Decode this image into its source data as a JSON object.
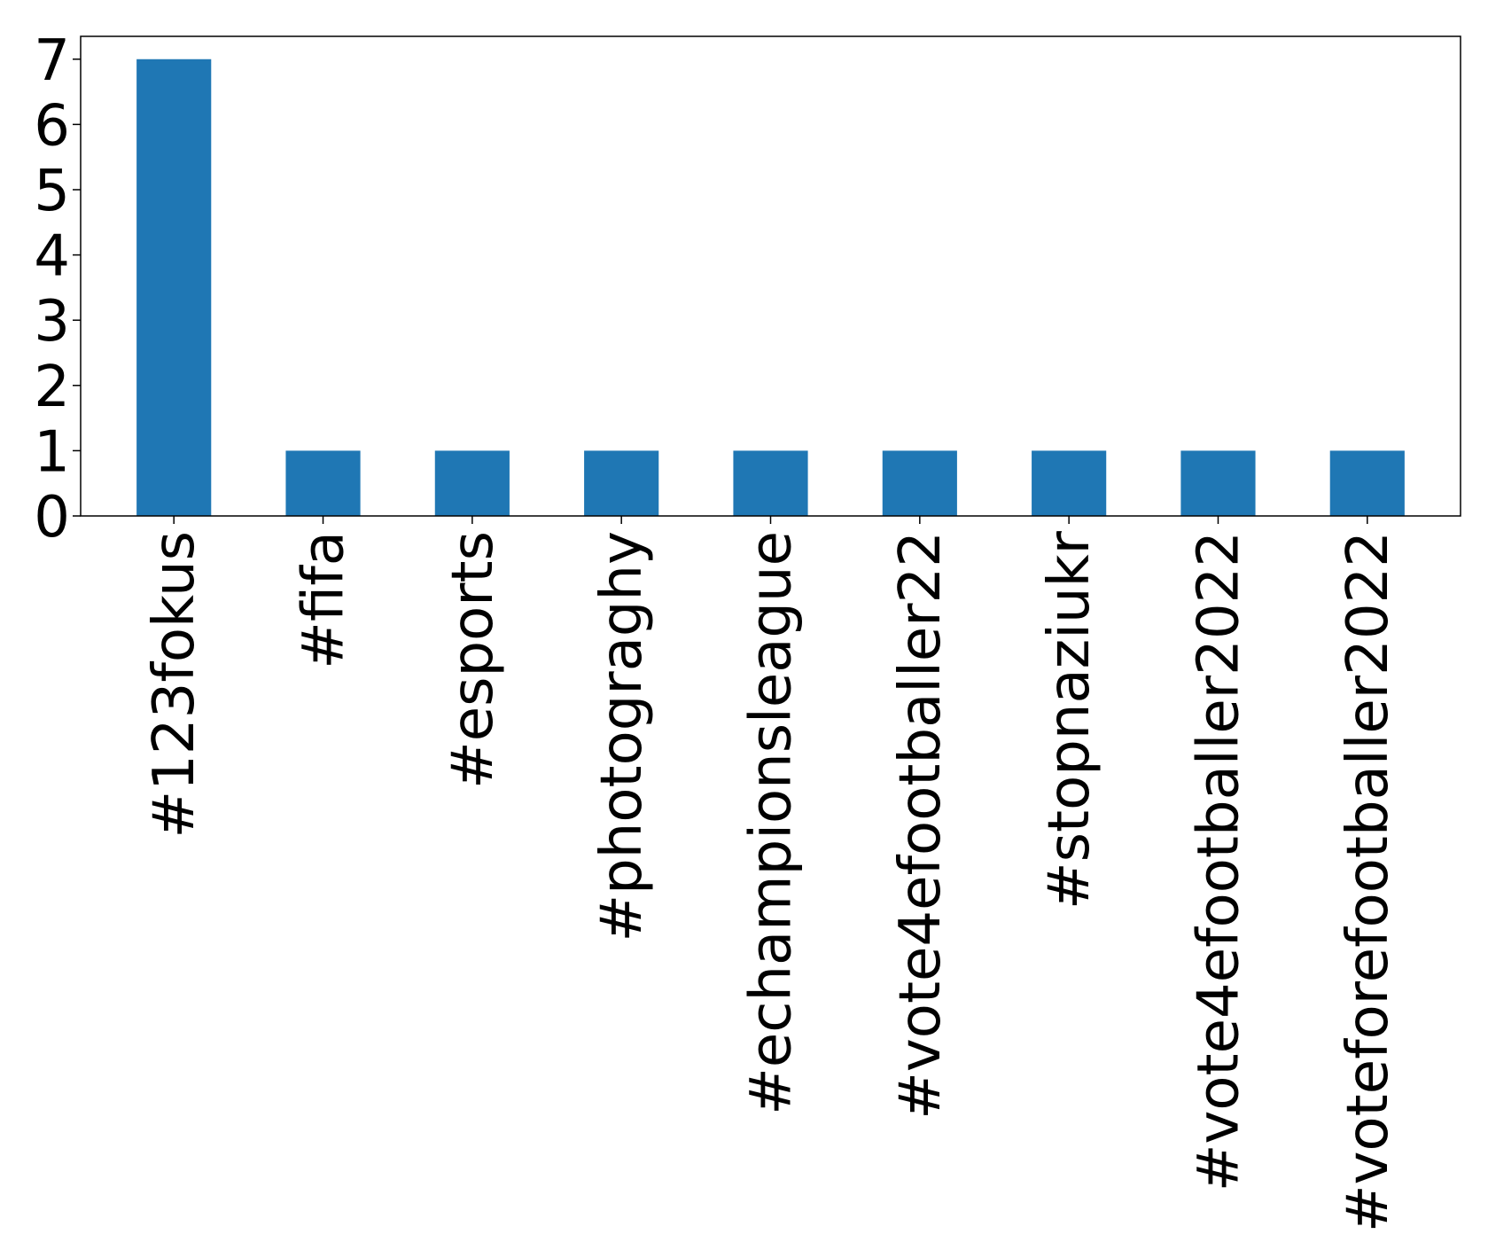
{
  "chart_data": {
    "type": "bar",
    "title": "",
    "xlabel": "",
    "ylabel": "",
    "categories": [
      "#123fokus",
      "#fifa",
      "#esports",
      "#photograghy",
      "#echampionsleague",
      "#vote4efootballer22",
      "#stopnaziukr",
      "#vote4efootballer2022",
      "#voteforefootballer2022"
    ],
    "values": [
      7,
      1,
      1,
      1,
      1,
      1,
      1,
      1,
      1
    ],
    "ylim": [
      0,
      7.35
    ],
    "yticks": [
      0,
      1,
      2,
      3,
      4,
      5,
      6,
      7
    ],
    "grid": false,
    "legend": "none",
    "colors": {
      "bar": "#1f77b4",
      "axis": "#000000",
      "background": "#ffffff"
    }
  }
}
